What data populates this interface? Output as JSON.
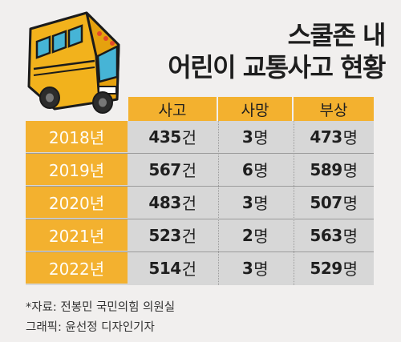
{
  "title_line1": "스쿨존 내",
  "title_line2": "어린이 교통사고 현황",
  "columns": [
    "사고",
    "사망",
    "부상"
  ],
  "chart_data": {
    "type": "table",
    "title": "스쿨존 내 어린이 교통사고 현황",
    "columns": [
      "사고",
      "사망",
      "부상"
    ],
    "units": [
      "건",
      "명",
      "명"
    ],
    "rows": [
      {
        "year": "2018년",
        "values": [
          "435",
          "3",
          "473"
        ]
      },
      {
        "year": "2019년",
        "values": [
          "567",
          "6",
          "589"
        ]
      },
      {
        "year": "2020년",
        "values": [
          "483",
          "3",
          "507"
        ]
      },
      {
        "year": "2021년",
        "values": [
          "523",
          "2",
          "563"
        ]
      },
      {
        "year": "2022년",
        "values": [
          "514",
          "3",
          "529"
        ]
      }
    ]
  },
  "footnotes": {
    "source": "*자료: 전봉민 국민의힘 의원실",
    "credit": "그래픽: 윤선정 디자인기자"
  },
  "colors": {
    "accent_yellow": "#f3b12f",
    "table_gray": "#d7d7d7",
    "background": "#f1efee"
  }
}
